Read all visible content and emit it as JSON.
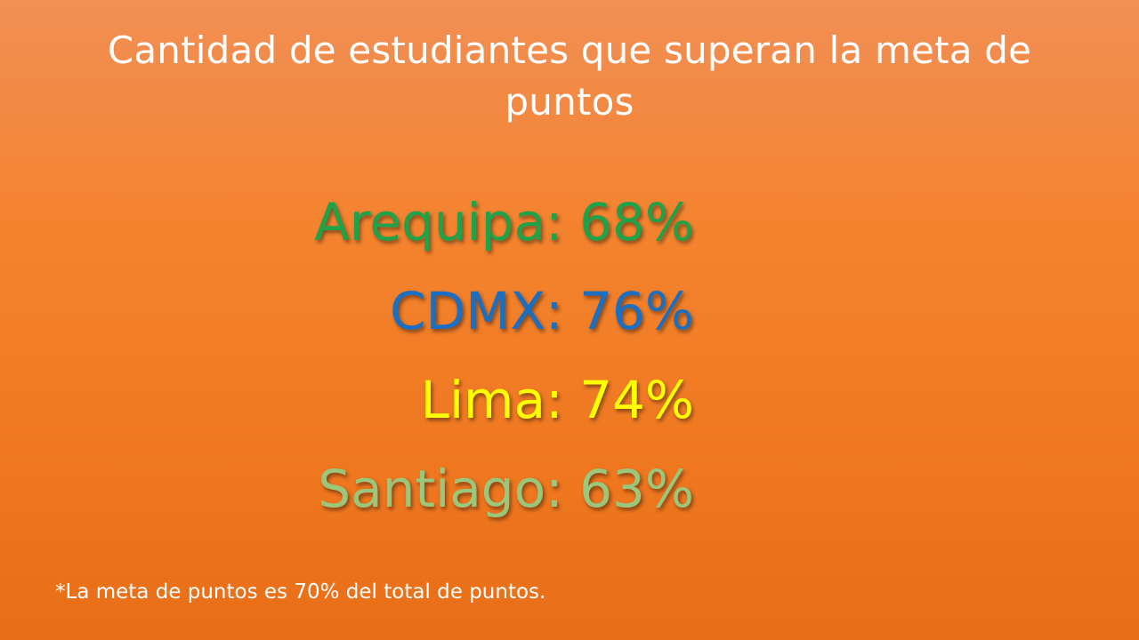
{
  "slide": {
    "title": "Cantidad de estudiantes que superan la meta de puntos",
    "stats": [
      {
        "text": "Arequipa: 68%",
        "color": "#1fa24a"
      },
      {
        "text": "CDMX: 76%",
        "color": "#1a6fc2"
      },
      {
        "text": "Lima: 74%",
        "color": "#ffff00"
      },
      {
        "text": "Santiago: 63%",
        "color": "#9bc77c"
      }
    ],
    "footnote": "*La meta de puntos es 70% del total de puntos."
  }
}
